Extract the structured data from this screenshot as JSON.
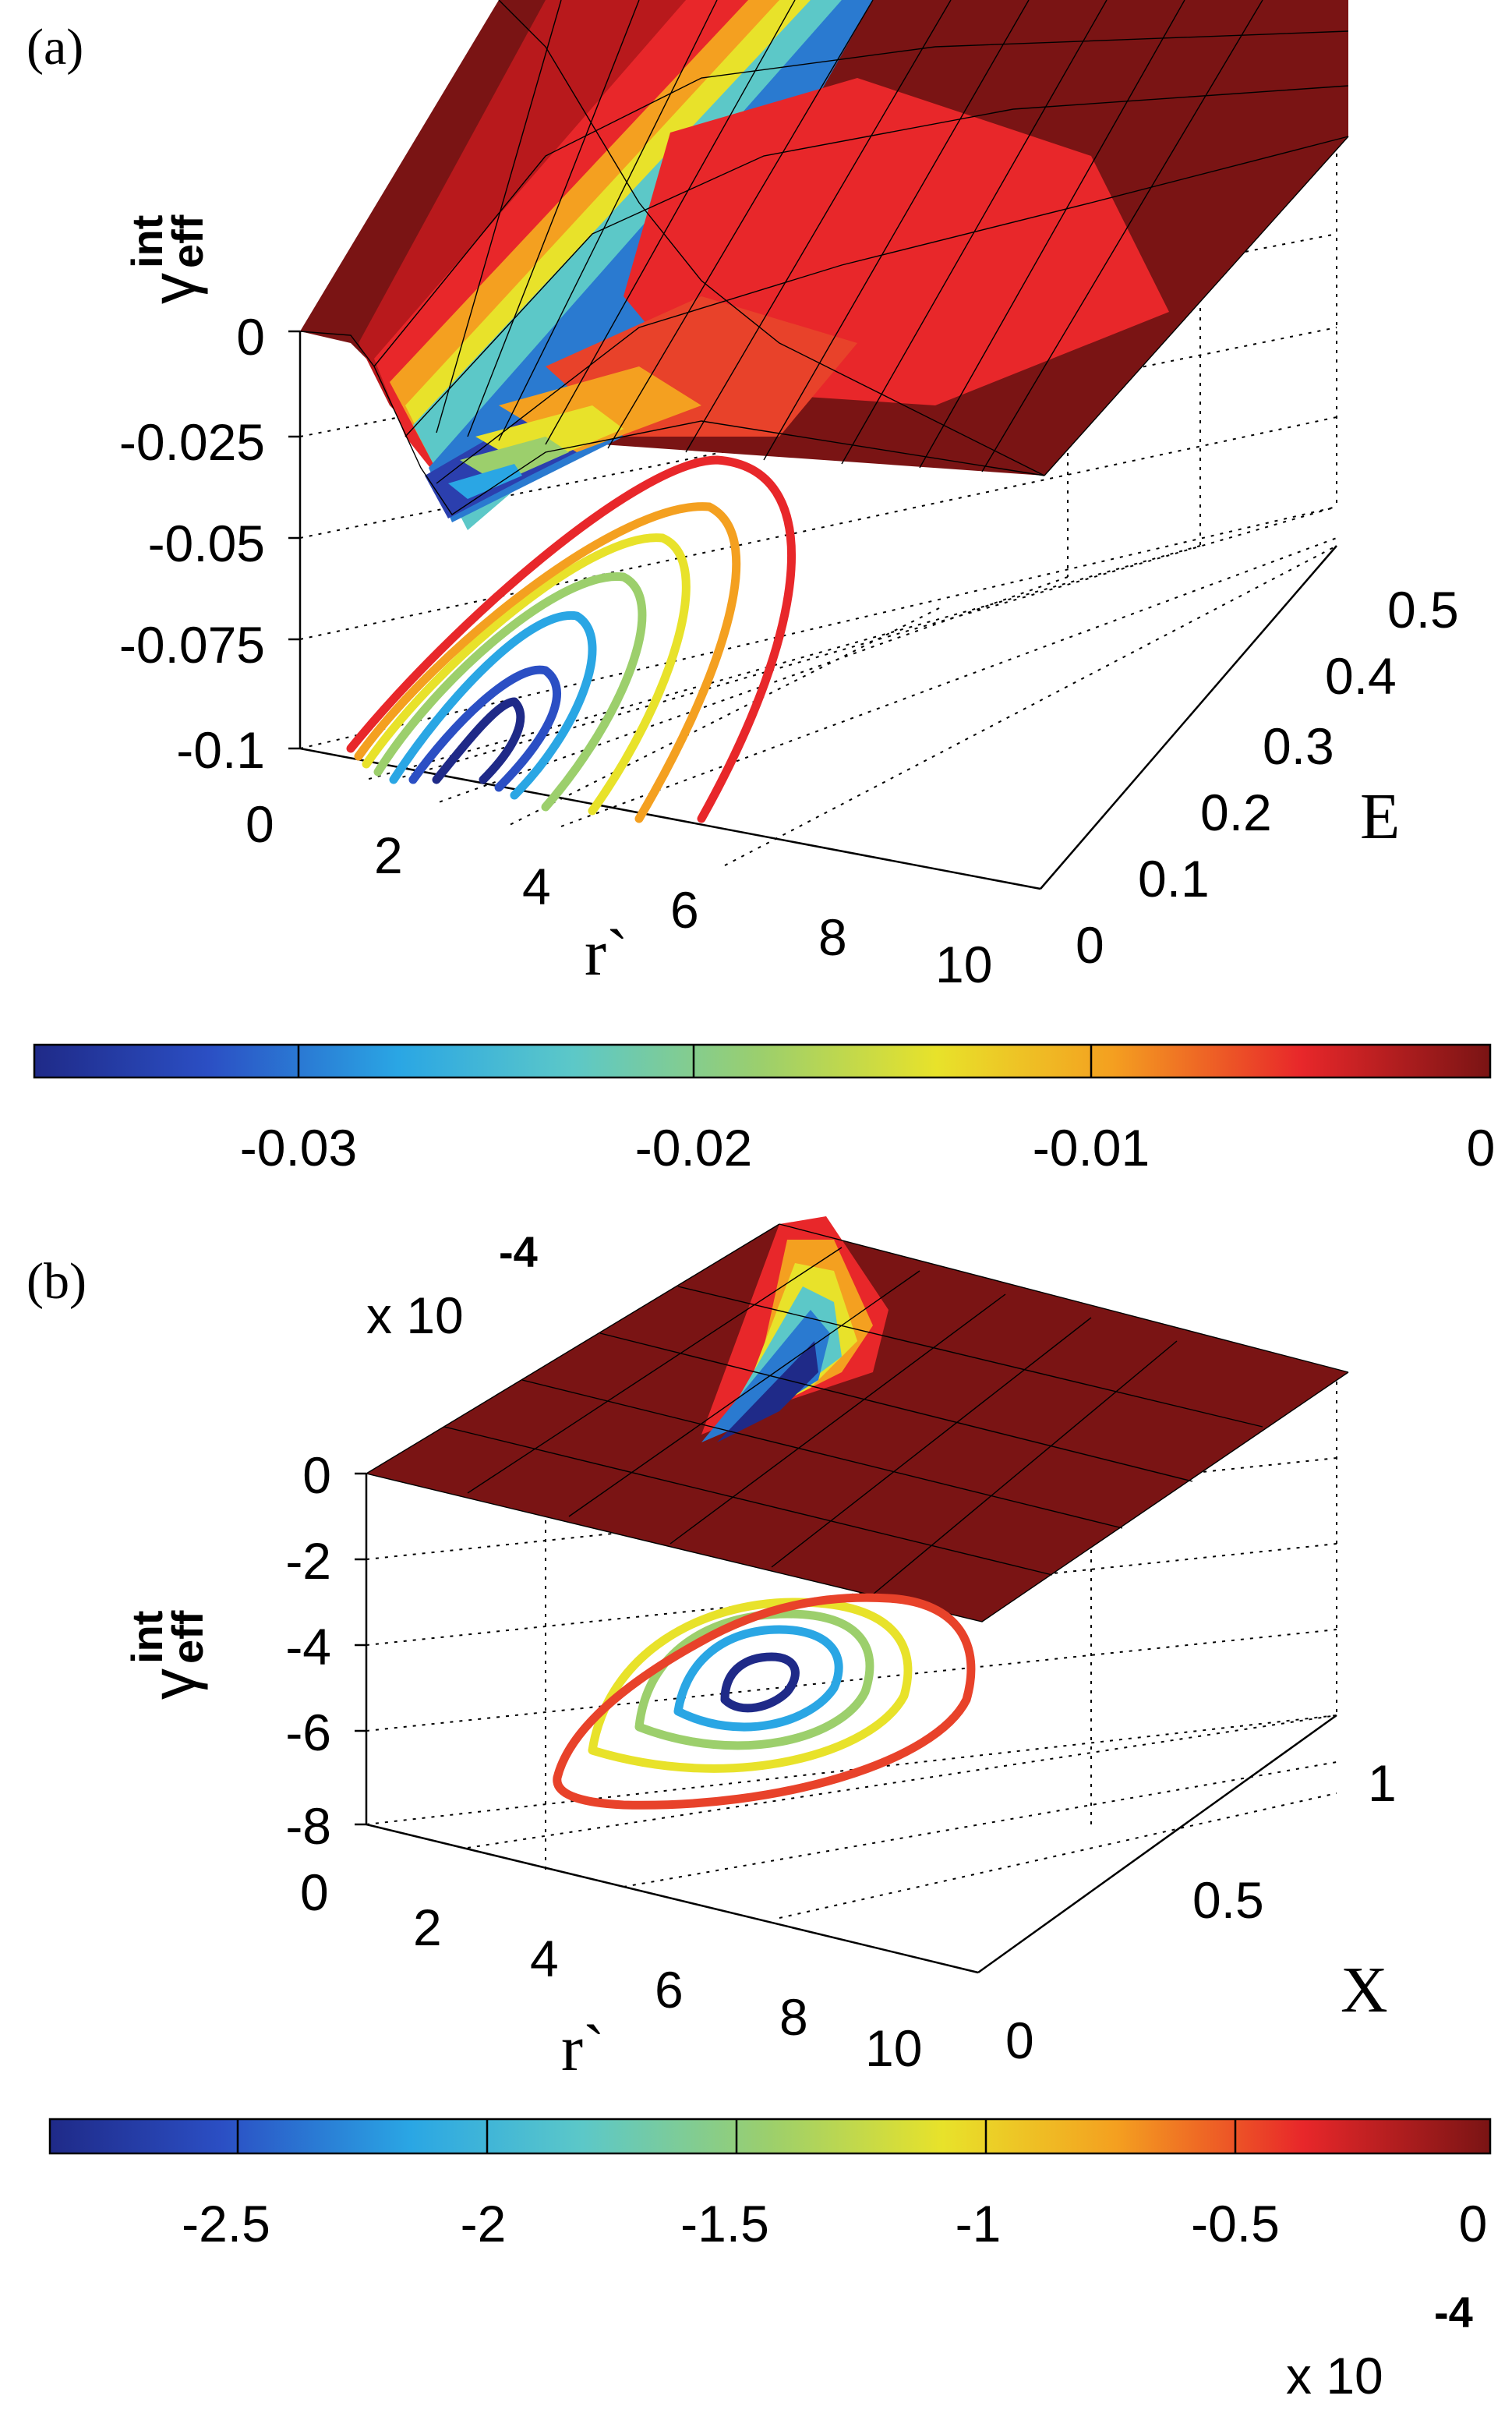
{
  "chart_data": [
    {
      "panel": "(a)",
      "type": "surface3d",
      "z_label": "γ",
      "z_label_sup": "int",
      "z_label_sub": "eff",
      "x_label": "r`",
      "y_label": "E",
      "x_ticks": [
        "0",
        "2",
        "4",
        "6",
        "8",
        "10"
      ],
      "y_ticks": [
        "0",
        "0.1",
        "0.2",
        "0.3",
        "0.4",
        "0.5"
      ],
      "z_ticks": [
        "0",
        "-0.025",
        "-0.05",
        "-0.075",
        "-0.1"
      ],
      "xlim": [
        0,
        10
      ],
      "ylim": [
        0,
        0.5
      ],
      "zlim": [
        -0.1,
        0
      ],
      "min_value": -0.036,
      "contour_levels": [
        -0.033,
        -0.028,
        -0.022,
        -0.016,
        -0.01,
        -0.004
      ],
      "colorbar": {
        "ticks": [
          "-0.03",
          "-0.02",
          "-0.01",
          "0"
        ],
        "range": [
          -0.036,
          0
        ],
        "exponent": ""
      }
    },
    {
      "panel": "(b)",
      "type": "surface3d",
      "z_label": "γ",
      "z_label_sup": "int",
      "z_label_sub": "eff",
      "x_label": "r`",
      "y_label": "X",
      "x_ticks": [
        "0",
        "2",
        "4",
        "6",
        "8",
        "10"
      ],
      "y_ticks": [
        "0",
        "0.5",
        "1"
      ],
      "z_ticks": [
        "0",
        "-2",
        "-4",
        "-6",
        "-8"
      ],
      "z_exponent": "x 10",
      "z_exponent_power": "-4",
      "xlim": [
        0,
        10
      ],
      "ylim": [
        0,
        1
      ],
      "zlim": [
        -8,
        0
      ],
      "min_value": -2.9,
      "contour_levels": [
        -2.7,
        -2.2,
        -1.7,
        -1.2,
        -0.7
      ],
      "colorbar": {
        "ticks": [
          "-2.5",
          "-2",
          "-1.5",
          "-1",
          "-0.5",
          "0"
        ],
        "range": [
          -2.9,
          0
        ],
        "exponent": "x 10",
        "exponent_power": "-4"
      }
    }
  ]
}
